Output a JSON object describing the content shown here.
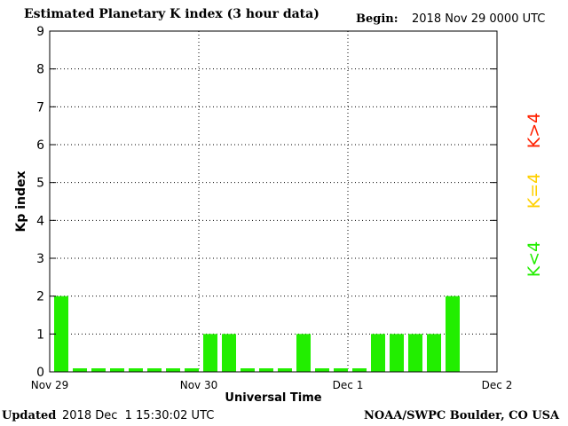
{
  "header": {
    "title": "Estimated Planetary K index (3 hour data)",
    "begin_label": "Begin:",
    "begin_value": "2018 Nov 29 0000 UTC"
  },
  "footer": {
    "updated_label": "Updated",
    "updated_value": "2018 Dec  1 15:30:02 UTC",
    "credit": "NOAA/SWPC Boulder, CO USA"
  },
  "legend": {
    "items": [
      {
        "label": "K>4",
        "color": "#ff2000"
      },
      {
        "label": "K=4",
        "color": "#ffd000"
      },
      {
        "label": "K<4",
        "color": "#22ee00"
      }
    ]
  },
  "chart_data": {
    "type": "bar",
    "title": "Estimated Planetary K index (3 hour data)",
    "xlabel": "Universal Time",
    "ylabel": "Kp index",
    "ylim": [
      0,
      9
    ],
    "yticks": [
      "0",
      "1",
      "2",
      "3",
      "4",
      "5",
      "6",
      "7",
      "8",
      "9"
    ],
    "xlim_days": [
      0,
      3
    ],
    "xticks": [
      "Nov 29",
      "Nov 30",
      "Dec 1",
      "Dec 2"
    ],
    "interval_hours": 3,
    "grid": true,
    "bar_color": "#22ee00",
    "values": [
      2,
      0,
      0,
      0,
      0,
      0,
      0,
      0,
      1,
      1,
      0,
      0,
      0,
      1,
      0,
      0,
      0,
      1,
      1,
      1,
      1,
      2
    ]
  }
}
